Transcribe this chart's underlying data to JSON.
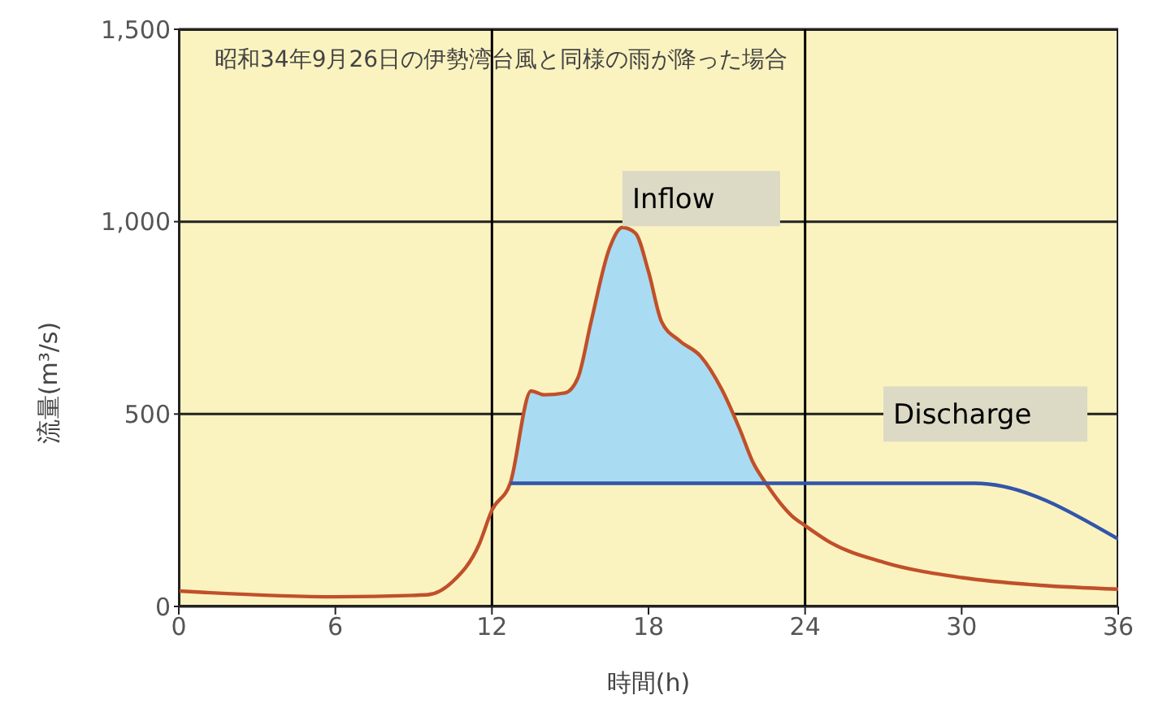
{
  "chart_data": {
    "type": "line",
    "title": "昭和34年9月26日の伊勢湾台風と同様の雨が降った場合",
    "xlabel": "時間(h)",
    "ylabel": "流量(m³/s)",
    "xlim": [
      0,
      36
    ],
    "xticks": [
      0,
      6,
      12,
      18,
      24,
      30,
      36
    ],
    "ylim": [
      0,
      1500
    ],
    "yticks": [
      0,
      500,
      {
        "value": 1000,
        "label": "1,000"
      },
      {
        "value": 1500,
        "label": "1,500"
      }
    ],
    "grid": "y",
    "marker": "none",
    "line_style": "solid",
    "ref_lines": [
      {
        "axis": "x",
        "value": 12,
        "color": "#000000"
      },
      {
        "axis": "x",
        "value": 24,
        "color": "#000000"
      }
    ],
    "series": [
      {
        "name": "Inflow",
        "color": "#c0502a",
        "x": [
          0,
          6,
          9.5,
          10.5,
          11.5,
          12,
          12.7,
          13.5,
          14,
          14.8,
          15.3,
          15.8,
          16.5,
          17,
          17.5,
          18,
          18.5,
          19.2,
          20,
          20.8,
          21.5,
          22,
          22.5,
          23.5,
          24,
          25,
          27,
          30,
          33,
          36
        ],
        "values": [
          40,
          25,
          30,
          65,
          160,
          250,
          320,
          560,
          550,
          555,
          595,
          740,
          930,
          985,
          970,
          870,
          740,
          690,
          650,
          565,
          460,
          375,
          320,
          235,
          210,
          165,
          115,
          75,
          55,
          45
        ],
        "lower": [
          null,
          null,
          null,
          null,
          null,
          null,
          320,
          320,
          320,
          320,
          320,
          320,
          320,
          320,
          320,
          320,
          320,
          320,
          320,
          320,
          320,
          320,
          320,
          null,
          null,
          null,
          null,
          null,
          null,
          null
        ],
        "upper": [
          null,
          null,
          null,
          null,
          null,
          null,
          320,
          560,
          550,
          555,
          595,
          740,
          930,
          985,
          970,
          870,
          740,
          690,
          650,
          565,
          460,
          375,
          320,
          null,
          null,
          null,
          null,
          null,
          null,
          null
        ]
      },
      {
        "name": "Discharge",
        "color": "#3355aa",
        "x": [
          12.7,
          30.5,
          36
        ],
        "values": [
          320,
          320,
          175
        ]
      }
    ]
  }
}
